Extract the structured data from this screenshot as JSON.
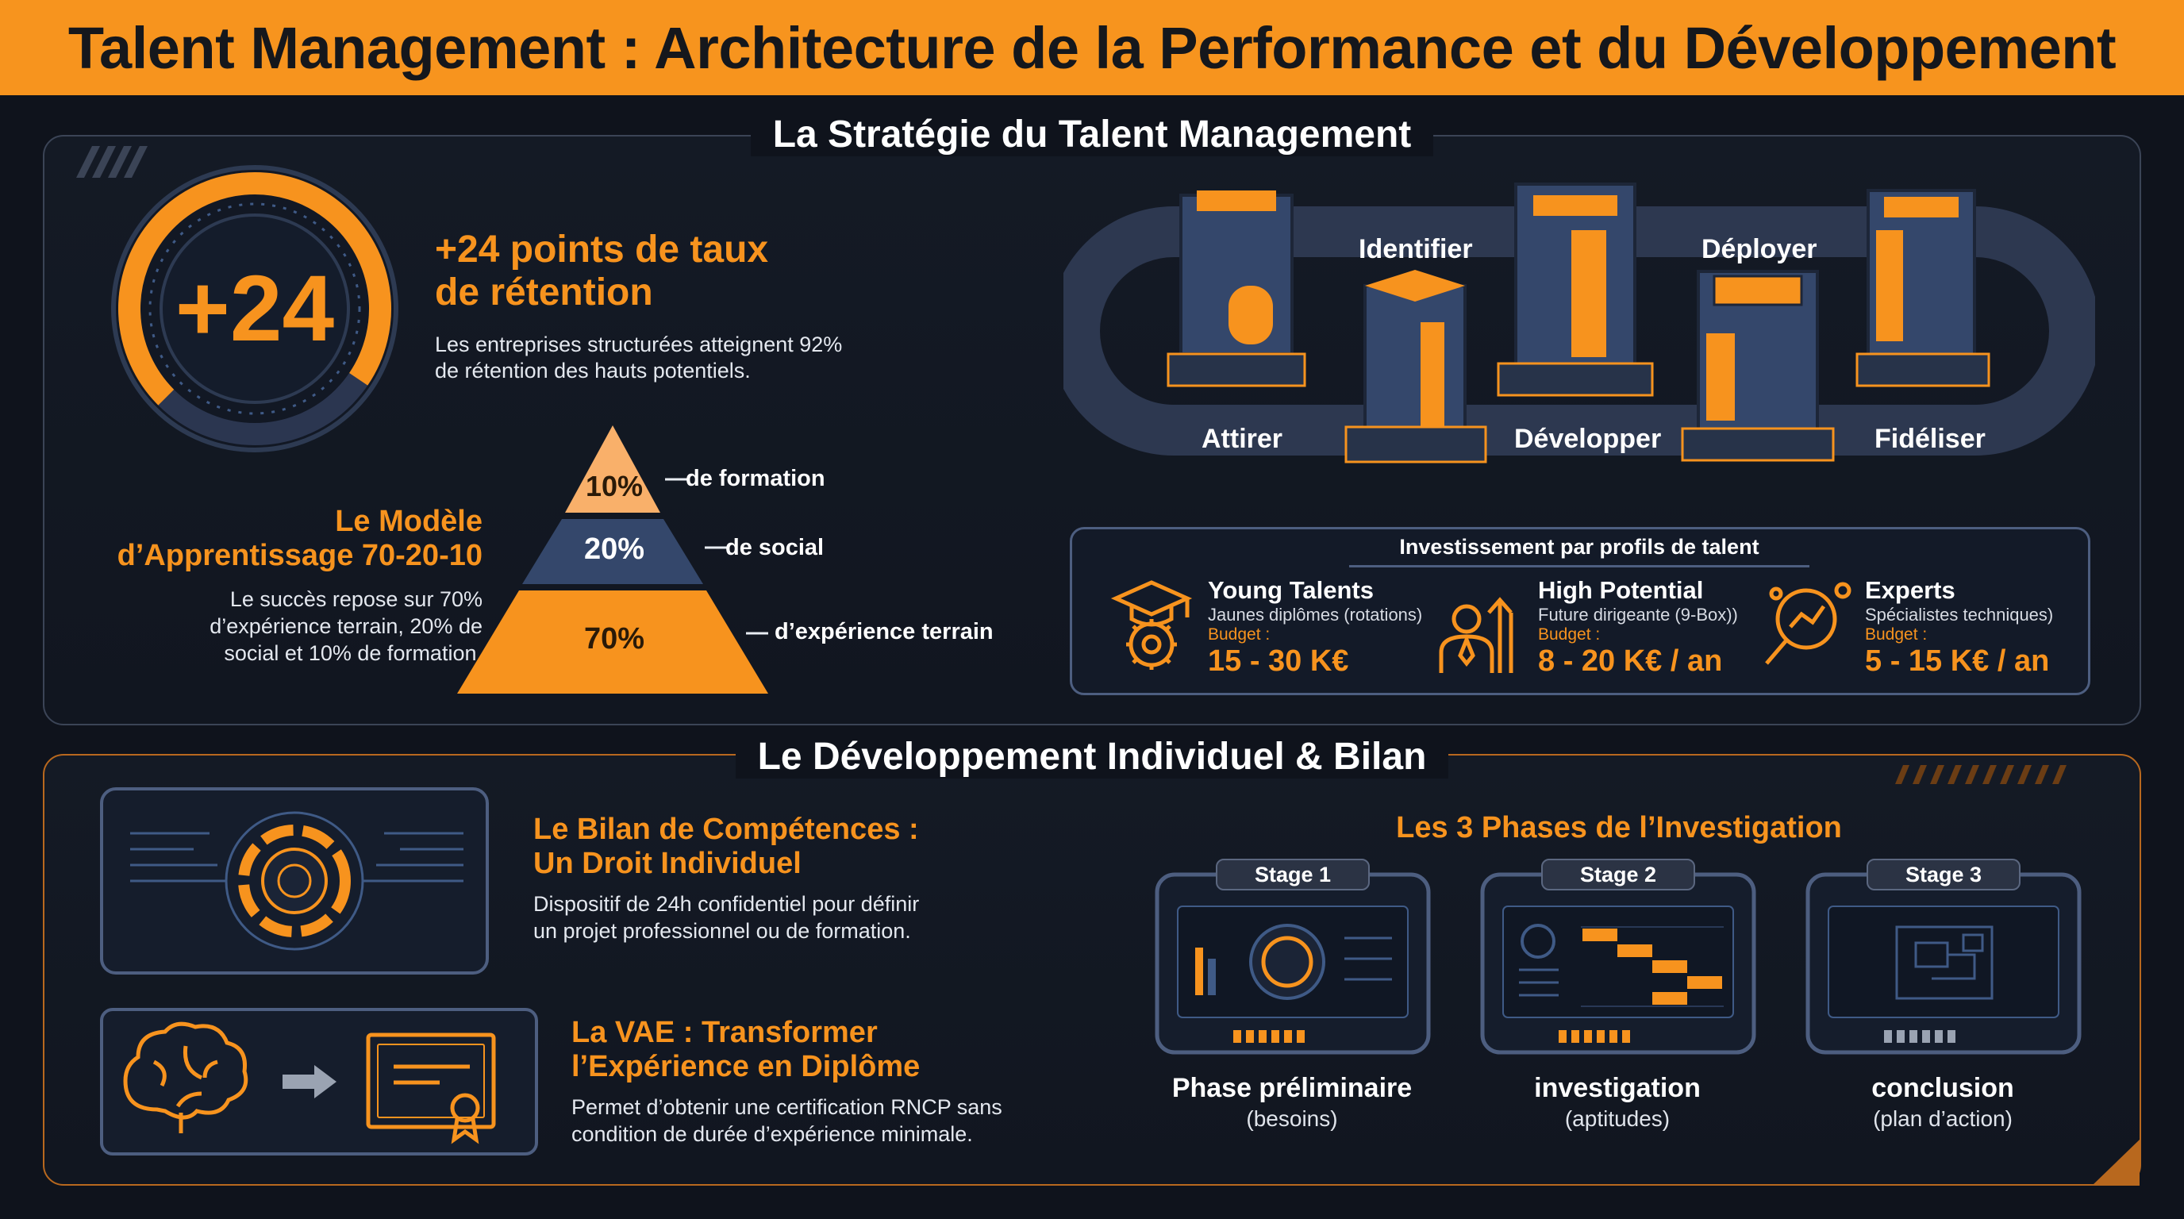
{
  "title": "Talent Management : Architecture de la Performance et du Développement",
  "strategy": {
    "section_title": "La Stratégie du Talent Management",
    "gauge": {
      "value": "+24",
      "fill_fraction": 0.72
    },
    "retention": {
      "heading_line1": "+24 points de taux",
      "heading_line2": "de rétention",
      "text_line1": "Les entreprises structurées atteignent 92%",
      "text_line2": "de rétention des hauts potentiels."
    },
    "model": {
      "heading_line1": "Le Modèle",
      "heading_line2": "d’Apprentissage 70-20-10",
      "text_line1": "Le succès repose sur 70%",
      "text_line2": "d’expérience terrain, 20% de",
      "text_line3": "social et 10% de formation."
    },
    "pyramid": [
      {
        "pct": "10%",
        "label": "de formation",
        "color": "#f9b06a"
      },
      {
        "pct": "20%",
        "label": "de social",
        "color": "#34476b"
      },
      {
        "pct": "70%",
        "label": "d’expérience terrain",
        "color": "#f7931e"
      }
    ],
    "cycle": [
      "Attirer",
      "Identifier",
      "Développer",
      "Déployer",
      "Fidéliser"
    ],
    "investment": {
      "title": "Investissement par profils de talent",
      "profiles": [
        {
          "name": "Young Talents",
          "sub": "Jaunes diplômes (rotations)",
          "budget_label": "Budget :",
          "budget": "15 - 30 K€",
          "icon": "graduation-gear-icon"
        },
        {
          "name": "High Potential",
          "sub": "Future dirigeante (9-Box))",
          "budget_label": "Budget :",
          "budget": "8 - 20 K€ / an",
          "icon": "leader-arrow-icon"
        },
        {
          "name": "Experts",
          "sub": "Spécialistes techniques)",
          "budget_label": "Budget :",
          "budget": "5 - 15 K€ / an",
          "icon": "magnifier-chart-icon"
        }
      ]
    }
  },
  "development": {
    "section_title": "Le Développement Individuel & Bilan",
    "bilan": {
      "heading_line1": "Le Bilan de Compétences :",
      "heading_line2": "Un Droit Individuel",
      "text_line1": "Dispositif de 24h confidentiel pour définir",
      "text_line2": "un projet professionnel ou de formation."
    },
    "vae": {
      "heading_line1": "La VAE : Transformer",
      "heading_line2": "l’Expérience en Diplôme",
      "text_line1": "Permet d’obtenir une certification RNCP sans",
      "text_line2": "condition de durée d’expérience minimale."
    },
    "phases_title": "Les 3 Phases de l’Investigation",
    "phases": [
      {
        "stage": "Stage 1",
        "name": "Phase préliminaire",
        "sub": "(besoins)"
      },
      {
        "stage": "Stage 2",
        "name": "investigation",
        "sub": "(aptitudes)"
      },
      {
        "stage": "Stage 3",
        "name": "conclusion",
        "sub": "(plan d’action)"
      }
    ]
  },
  "colors": {
    "accent": "#f7931e",
    "background": "#0f131c",
    "panel_border": "#3b4456",
    "navy": "#34476b"
  }
}
